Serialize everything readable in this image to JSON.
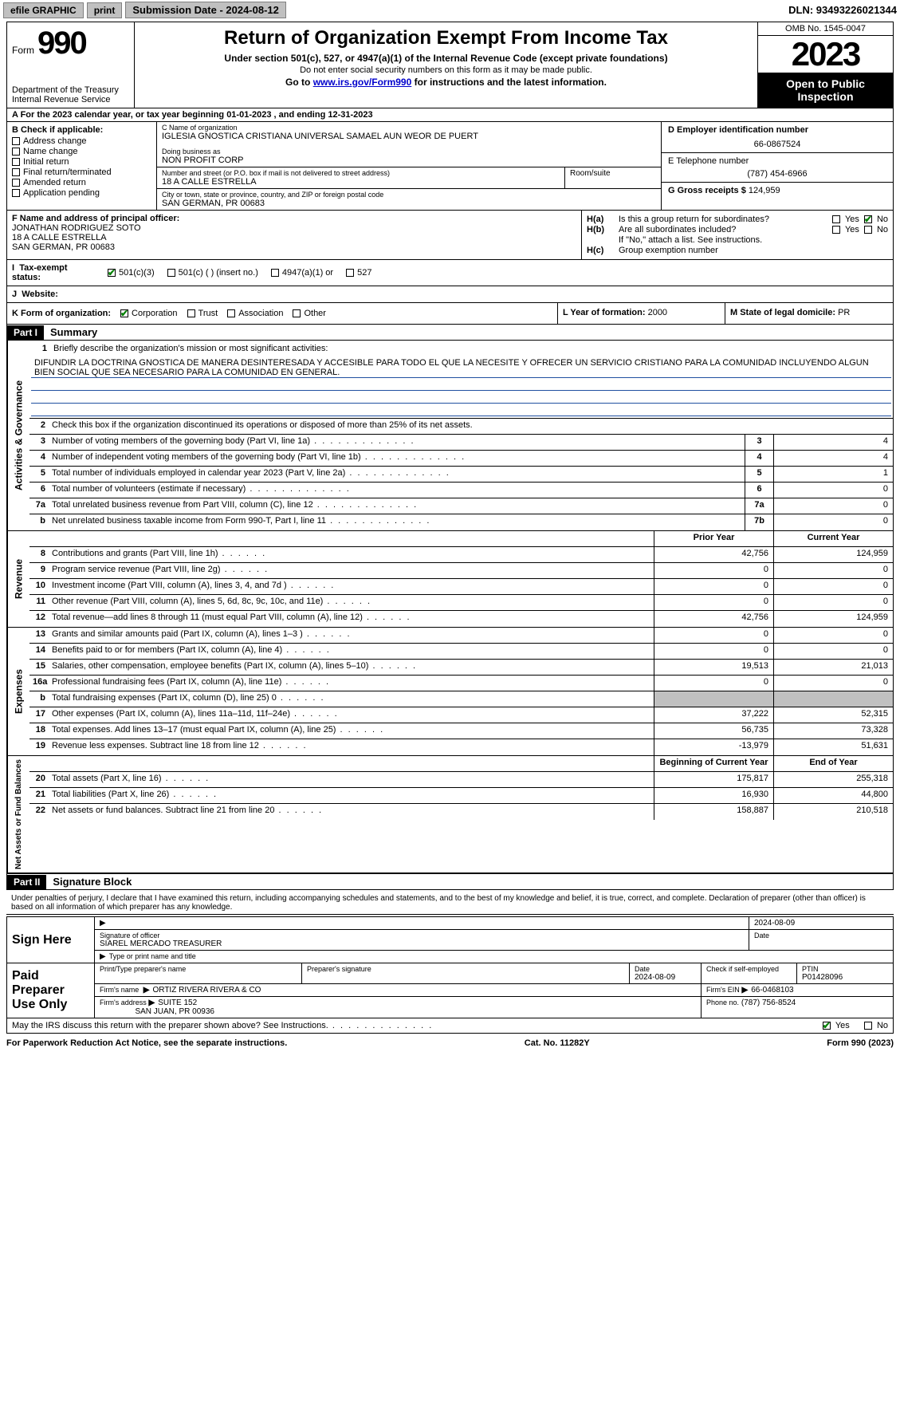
{
  "topbar": {
    "efile": "efile GRAPHIC",
    "print": "print",
    "submission": "Submission Date - 2024-08-12",
    "dln": "DLN: 93493226021344"
  },
  "header": {
    "form_word": "Form",
    "form_num": "990",
    "dept": "Department of the Treasury\nInternal Revenue Service",
    "title": "Return of Organization Exempt From Income Tax",
    "sub1": "Under section 501(c), 527, or 4947(a)(1) of the Internal Revenue Code (except private foundations)",
    "sub2": "Do not enter social security numbers on this form as it may be made public.",
    "sub3_pre": "Go to ",
    "sub3_link": "www.irs.gov/Form990",
    "sub3_post": " for instructions and the latest information.",
    "omb": "OMB No. 1545-0047",
    "year": "2023",
    "inspect": "Open to Public Inspection"
  },
  "line_a": "A For the 2023 calendar year, or tax year beginning 01-01-2023   , and ending 12-31-2023",
  "box_b": {
    "title": "B Check if applicable:",
    "items": [
      "Address change",
      "Name change",
      "Initial return",
      "Final return/terminated",
      "Amended return",
      "Application pending"
    ]
  },
  "box_c": {
    "name_lbl": "C Name of organization",
    "name": "IGLESIA GNOSTICA CRISTIANA UNIVERSAL SAMAEL AUN WEOR DE PUERT",
    "dba_lbl": "Doing business as",
    "dba": "NON PROFIT CORP",
    "street_lbl": "Number and street (or P.O. box if mail is not delivered to street address)",
    "street": "18 A CALLE ESTRELLA",
    "suite_lbl": "Room/suite",
    "city_lbl": "City or town, state or province, country, and ZIP or foreign postal code",
    "city": "SAN GERMAN, PR  00683"
  },
  "box_d": {
    "lbl": "D Employer identification number",
    "val": "66-0867524"
  },
  "box_e": {
    "lbl": "E Telephone number",
    "val": "(787) 454-6966"
  },
  "box_g": {
    "lbl": "G Gross receipts $",
    "val": "124,959"
  },
  "box_f": {
    "lbl": "F  Name and address of principal officer:",
    "l1": "JONATHAN RODRIGUEZ SOTO",
    "l2": "18 A CALLE ESTRELLA",
    "l3": "SAN GERMAN, PR  00683"
  },
  "box_h": {
    "a": "Is this a group return for subordinates?",
    "b": "Are all subordinates included?",
    "note": "If \"No,\" attach a list. See instructions.",
    "c": "Group exemption number",
    "ha": "H(a)",
    "hb": "H(b)",
    "hc": "H(c)",
    "yes": "Yes",
    "no": "No"
  },
  "box_i": {
    "lbl": "Tax-exempt status:",
    "o1": "501(c)(3)",
    "o2": "501(c) (  ) (insert no.)",
    "o3": "4947(a)(1) or",
    "o4": "527"
  },
  "box_j": {
    "lbl": "Website:",
    "val": ""
  },
  "box_k": {
    "lbl": "K Form of organization:",
    "o1": "Corporation",
    "o2": "Trust",
    "o3": "Association",
    "o4": "Other"
  },
  "box_l": {
    "lbl": "L Year of formation:",
    "val": "2000"
  },
  "box_m": {
    "lbl": "M State of legal domicile:",
    "val": "PR"
  },
  "parts": {
    "p1": "Part I",
    "p1t": "Summary",
    "p2": "Part II",
    "p2t": "Signature Block"
  },
  "summary": {
    "s1_lbl": "Briefly describe the organization's mission or most significant activities:",
    "s1_text": "DIFUNDIR LA DOCTRINA GNOSTICA DE MANERA DESINTERESADA Y ACCESIBLE PARA TODO EL QUE LA NECESITE Y OFRECER UN SERVICIO CRISTIANO PARA LA COMUNIDAD INCLUYENDO ALGUN BIEN SOCIAL QUE SEA NECESARIO PARA LA COMUNIDAD EN GENERAL.",
    "s2": "Check this box       if the organization discontinued its operations or disposed of more than 25% of its net assets.",
    "sidelabels": {
      "ag": "Activities & Governance",
      "rev": "Revenue",
      "exp": "Expenses",
      "nab": "Net Assets or Fund Balances"
    },
    "hdr_prior": "Prior Year",
    "hdr_curr": "Current Year",
    "hdr_boy": "Beginning of Current Year",
    "hdr_eoy": "End of Year",
    "rows_gov": [
      {
        "n": "3",
        "t": "Number of voting members of the governing body (Part VI, line 1a)",
        "box": "3",
        "v": "4"
      },
      {
        "n": "4",
        "t": "Number of independent voting members of the governing body (Part VI, line 1b)",
        "box": "4",
        "v": "4"
      },
      {
        "n": "5",
        "t": "Total number of individuals employed in calendar year 2023 (Part V, line 2a)",
        "box": "5",
        "v": "1"
      },
      {
        "n": "6",
        "t": "Total number of volunteers (estimate if necessary)",
        "box": "6",
        "v": "0"
      },
      {
        "n": "7a",
        "t": "Total unrelated business revenue from Part VIII, column (C), line 12",
        "box": "7a",
        "v": "0"
      },
      {
        "n": "b",
        "t": "Net unrelated business taxable income from Form 990-T, Part I, line 11",
        "box": "7b",
        "v": "0"
      }
    ],
    "rows_rev": [
      {
        "n": "8",
        "t": "Contributions and grants (Part VIII, line 1h)",
        "p": "42,756",
        "c": "124,959"
      },
      {
        "n": "9",
        "t": "Program service revenue (Part VIII, line 2g)",
        "p": "0",
        "c": "0"
      },
      {
        "n": "10",
        "t": "Investment income (Part VIII, column (A), lines 3, 4, and 7d )",
        "p": "0",
        "c": "0"
      },
      {
        "n": "11",
        "t": "Other revenue (Part VIII, column (A), lines 5, 6d, 8c, 9c, 10c, and 11e)",
        "p": "0",
        "c": "0"
      },
      {
        "n": "12",
        "t": "Total revenue—add lines 8 through 11 (must equal Part VIII, column (A), line 12)",
        "p": "42,756",
        "c": "124,959"
      }
    ],
    "rows_exp": [
      {
        "n": "13",
        "t": "Grants and similar amounts paid (Part IX, column (A), lines 1–3 )",
        "p": "0",
        "c": "0"
      },
      {
        "n": "14",
        "t": "Benefits paid to or for members (Part IX, column (A), line 4)",
        "p": "0",
        "c": "0"
      },
      {
        "n": "15",
        "t": "Salaries, other compensation, employee benefits (Part IX, column (A), lines 5–10)",
        "p": "19,513",
        "c": "21,013"
      },
      {
        "n": "16a",
        "t": "Professional fundraising fees (Part IX, column (A), line 11e)",
        "p": "0",
        "c": "0"
      },
      {
        "n": "b",
        "t": "Total fundraising expenses (Part IX, column (D), line 25) 0",
        "p": "",
        "c": "",
        "shade": true
      },
      {
        "n": "17",
        "t": "Other expenses (Part IX, column (A), lines 11a–11d, 11f–24e)",
        "p": "37,222",
        "c": "52,315"
      },
      {
        "n": "18",
        "t": "Total expenses. Add lines 13–17 (must equal Part IX, column (A), line 25)",
        "p": "56,735",
        "c": "73,328"
      },
      {
        "n": "19",
        "t": "Revenue less expenses. Subtract line 18 from line 12",
        "p": "-13,979",
        "c": "51,631"
      }
    ],
    "rows_nab": [
      {
        "n": "20",
        "t": "Total assets (Part X, line 16)",
        "p": "175,817",
        "c": "255,318"
      },
      {
        "n": "21",
        "t": "Total liabilities (Part X, line 26)",
        "p": "16,930",
        "c": "44,800"
      },
      {
        "n": "22",
        "t": "Net assets or fund balances. Subtract line 21 from line 20",
        "p": "158,887",
        "c": "210,518"
      }
    ]
  },
  "sig": {
    "intro": "Under penalties of perjury, I declare that I have examined this return, including accompanying schedules and statements, and to the best of my knowledge and belief, it is true, correct, and complete. Declaration of preparer (other than officer) is based on all information of which preparer has any knowledge.",
    "sign_here": "Sign Here",
    "paid": "Paid Preparer Use Only",
    "date1": "2024-08-09",
    "sig_officer_lbl": "Signature of officer",
    "officer": "SIAREL MERCADO  TREASURER",
    "type_lbl": "Type or print name and title",
    "date_lbl": "Date",
    "prep_name_lbl": "Print/Type preparer's name",
    "prep_sig_lbl": "Preparer's signature",
    "date2": "2024-08-09",
    "self_emp": "Check       if self-employed",
    "ptin_lbl": "PTIN",
    "ptin": "P01428096",
    "firm_name_lbl": "Firm's name",
    "firm_name": "ORTIZ RIVERA RIVERA & CO",
    "firm_ein_lbl": "Firm's EIN",
    "firm_ein": "66-0468103",
    "firm_addr_lbl": "Firm's address",
    "firm_addr1": "SUITE 152",
    "firm_addr2": "SAN JUAN, PR  00936",
    "phone_lbl": "Phone no.",
    "phone": "(787) 756-8524",
    "discuss": "May the IRS discuss this return with the preparer shown above? See Instructions.",
    "yes": "Yes",
    "no": "No"
  },
  "footer": {
    "l": "For Paperwork Reduction Act Notice, see the separate instructions.",
    "m": "Cat. No. 11282Y",
    "r": "Form 990 (2023)"
  }
}
